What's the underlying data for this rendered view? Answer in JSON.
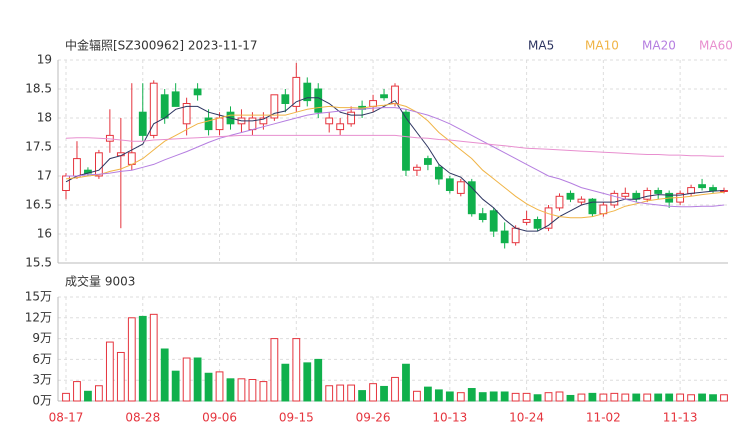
{
  "chart_data": [
    {
      "type": "candlestick",
      "title": "中金辐照[SZ300962] 2023-11-17",
      "categories": [
        "08-17",
        null,
        null,
        null,
        null,
        null,
        null,
        "08-28",
        null,
        null,
        null,
        null,
        null,
        null,
        "09-06",
        null,
        null,
        null,
        null,
        null,
        null,
        "09-15",
        null,
        null,
        null,
        null,
        null,
        null,
        "09-26",
        null,
        null,
        null,
        null,
        null,
        null,
        "10-13",
        null,
        null,
        null,
        null,
        null,
        null,
        "10-24",
        null,
        null,
        null,
        null,
        null,
        null,
        "11-02",
        null,
        null,
        null,
        null,
        null,
        null,
        "11-13",
        null,
        null,
        null,
        null
      ],
      "ohlc": [
        [
          16.75,
          17.05,
          16.6,
          17.0
        ],
        [
          17.0,
          17.6,
          16.95,
          17.3
        ],
        [
          17.1,
          17.15,
          17.0,
          17.05
        ],
        [
          17.0,
          17.45,
          16.95,
          17.4
        ],
        [
          17.6,
          18.15,
          17.4,
          17.7
        ],
        [
          17.35,
          18.0,
          16.1,
          17.4
        ],
        [
          17.2,
          18.6,
          17.1,
          17.4
        ],
        [
          18.1,
          18.6,
          17.6,
          17.7
        ],
        [
          17.7,
          18.65,
          17.65,
          18.6
        ],
        [
          18.4,
          18.5,
          17.9,
          18.0
        ],
        [
          18.45,
          18.6,
          18.2,
          18.2
        ],
        [
          17.9,
          18.35,
          17.7,
          18.25
        ],
        [
          18.5,
          18.6,
          18.3,
          18.4
        ],
        [
          18.0,
          18.15,
          17.7,
          17.8
        ],
        [
          17.8,
          18.1,
          17.7,
          18.0
        ],
        [
          18.1,
          18.2,
          17.8,
          17.9
        ],
        [
          17.9,
          18.15,
          17.75,
          18.0
        ],
        [
          17.8,
          18.1,
          17.7,
          18.0
        ],
        [
          17.9,
          18.1,
          17.8,
          18.0
        ],
        [
          18.0,
          18.4,
          17.95,
          18.4
        ],
        [
          18.4,
          18.5,
          18.1,
          18.25
        ],
        [
          18.2,
          18.95,
          18.1,
          18.7
        ],
        [
          18.6,
          18.7,
          18.2,
          18.3
        ],
        [
          18.5,
          18.6,
          18.0,
          18.1
        ],
        [
          17.9,
          18.1,
          17.75,
          18.0
        ],
        [
          17.8,
          18.0,
          17.7,
          17.9
        ],
        [
          17.9,
          18.2,
          17.85,
          18.1
        ],
        [
          18.2,
          18.3,
          18.0,
          18.15
        ],
        [
          18.2,
          18.4,
          18.1,
          18.3
        ],
        [
          18.4,
          18.5,
          18.3,
          18.35
        ],
        [
          18.25,
          18.6,
          18.2,
          18.55
        ],
        [
          18.1,
          18.15,
          17.0,
          17.1
        ],
        [
          17.1,
          17.2,
          17.0,
          17.15
        ],
        [
          17.3,
          17.35,
          17.1,
          17.2
        ],
        [
          17.15,
          17.2,
          16.85,
          16.95
        ],
        [
          16.95,
          17.0,
          16.7,
          16.75
        ],
        [
          16.7,
          16.95,
          16.65,
          16.9
        ],
        [
          16.9,
          16.95,
          16.3,
          16.35
        ],
        [
          16.35,
          16.45,
          16.2,
          16.25
        ],
        [
          16.4,
          16.45,
          15.95,
          16.05
        ],
        [
          16.05,
          16.2,
          15.75,
          15.85
        ],
        [
          15.85,
          16.15,
          15.8,
          16.1
        ],
        [
          16.2,
          16.4,
          16.15,
          16.25
        ],
        [
          16.25,
          16.3,
          16.05,
          16.1
        ],
        [
          16.1,
          16.5,
          16.05,
          16.45
        ],
        [
          16.45,
          16.7,
          16.4,
          16.65
        ],
        [
          16.7,
          16.75,
          16.55,
          16.6
        ],
        [
          16.55,
          16.65,
          16.5,
          16.6
        ],
        [
          16.6,
          16.62,
          16.3,
          16.35
        ],
        [
          16.35,
          16.55,
          16.3,
          16.5
        ],
        [
          16.5,
          16.75,
          16.45,
          16.7
        ],
        [
          16.65,
          16.8,
          16.6,
          16.7
        ],
        [
          16.7,
          16.75,
          16.55,
          16.6
        ],
        [
          16.6,
          16.8,
          16.55,
          16.75
        ],
        [
          16.75,
          16.8,
          16.6,
          16.7
        ],
        [
          16.7,
          16.75,
          16.45,
          16.55
        ],
        [
          16.55,
          16.75,
          16.5,
          16.7
        ],
        [
          16.7,
          16.85,
          16.65,
          16.8
        ],
        [
          16.85,
          16.95,
          16.75,
          16.8
        ],
        [
          16.8,
          16.85,
          16.7,
          16.75
        ],
        [
          16.75,
          16.8,
          16.7,
          16.75
        ]
      ],
      "up_color": "#e5343d",
      "down_color": "#10b04c",
      "ylim": [
        15.5,
        19
      ],
      "yticks": [
        15.5,
        16,
        16.5,
        17,
        17.5,
        18,
        18.5,
        19
      ],
      "grid": true,
      "series": [
        {
          "name": "MA5",
          "color": "#2d3561",
          "values": [
            16.9,
            17.0,
            17.05,
            17.1,
            17.3,
            17.35,
            17.45,
            17.55,
            17.9,
            18.0,
            18.15,
            18.2,
            18.2,
            18.1,
            18.05,
            18.0,
            17.95,
            17.95,
            17.98,
            18.08,
            18.12,
            18.28,
            18.35,
            18.35,
            18.25,
            18.1,
            18.05,
            18.05,
            18.1,
            18.2,
            18.3,
            18.0,
            17.75,
            17.5,
            17.2,
            17.05,
            16.98,
            16.8,
            16.6,
            16.45,
            16.25,
            16.1,
            16.05,
            16.05,
            16.15,
            16.3,
            16.4,
            16.5,
            16.55,
            16.55,
            16.55,
            16.6,
            16.6,
            16.65,
            16.68,
            16.67,
            16.67,
            16.7,
            16.72,
            16.74,
            16.75
          ]
        },
        {
          "name": "MA10",
          "color": "#f0b446",
          "values": [
            16.95,
            16.97,
            17.0,
            17.02,
            17.08,
            17.12,
            17.2,
            17.3,
            17.45,
            17.6,
            17.7,
            17.8,
            17.9,
            17.95,
            18.0,
            18.05,
            18.05,
            18.05,
            18.05,
            18.05,
            18.05,
            18.1,
            18.15,
            18.18,
            18.2,
            18.18,
            18.18,
            18.17,
            18.2,
            18.22,
            18.25,
            18.2,
            18.1,
            17.95,
            17.75,
            17.6,
            17.45,
            17.3,
            17.1,
            16.95,
            16.8,
            16.65,
            16.52,
            16.42,
            16.35,
            16.3,
            16.28,
            16.28,
            16.3,
            16.35,
            16.4,
            16.48,
            16.52,
            16.57,
            16.6,
            16.62,
            16.63,
            16.65,
            16.68,
            16.7,
            16.72
          ]
        },
        {
          "name": "MA20",
          "color": "#b57ee0",
          "values": [
            17.0,
            17.0,
            17.02,
            17.03,
            17.05,
            17.08,
            17.1,
            17.15,
            17.2,
            17.28,
            17.35,
            17.42,
            17.5,
            17.58,
            17.65,
            17.7,
            17.75,
            17.8,
            17.85,
            17.9,
            17.95,
            18.0,
            18.05,
            18.08,
            18.1,
            18.12,
            18.15,
            18.15,
            18.17,
            18.18,
            18.18,
            18.15,
            18.1,
            18.05,
            17.98,
            17.9,
            17.8,
            17.7,
            17.6,
            17.5,
            17.4,
            17.3,
            17.2,
            17.1,
            17.0,
            16.95,
            16.88,
            16.8,
            16.75,
            16.7,
            16.65,
            16.6,
            16.55,
            16.52,
            16.5,
            16.48,
            16.47,
            16.47,
            16.48,
            16.48,
            16.5
          ]
        },
        {
          "name": "MA60",
          "color": "#e88fcf",
          "values": [
            17.65,
            17.66,
            17.66,
            17.65,
            17.64,
            17.62,
            17.6,
            17.6,
            17.62,
            17.63,
            17.64,
            17.65,
            17.66,
            17.67,
            17.68,
            17.69,
            17.7,
            17.7,
            17.7,
            17.7,
            17.7,
            17.7,
            17.7,
            17.7,
            17.7,
            17.7,
            17.7,
            17.7,
            17.7,
            17.7,
            17.7,
            17.68,
            17.66,
            17.65,
            17.63,
            17.62,
            17.6,
            17.58,
            17.56,
            17.54,
            17.52,
            17.5,
            17.48,
            17.47,
            17.46,
            17.45,
            17.44,
            17.43,
            17.42,
            17.41,
            17.4,
            17.39,
            17.38,
            17.37,
            17.37,
            17.36,
            17.36,
            17.35,
            17.35,
            17.34,
            17.34
          ]
        }
      ]
    },
    {
      "type": "bar",
      "title": "成交量 9003",
      "values": [
        1.1,
        2.8,
        1.4,
        2.2,
        8.5,
        7.0,
        12.0,
        12.2,
        12.5,
        7.5,
        4.3,
        6.2,
        6.2,
        4.0,
        4.2,
        3.2,
        3.2,
        3.1,
        2.8,
        9.0,
        5.3,
        9.0,
        5.5,
        6.0,
        2.2,
        2.3,
        2.3,
        1.5,
        2.5,
        2.1,
        3.4,
        5.3,
        1.4,
        2.0,
        1.6,
        1.3,
        1.2,
        1.8,
        1.2,
        1.3,
        1.3,
        1.1,
        1.1,
        0.9,
        1.2,
        1.3,
        0.8,
        1.0,
        1.1,
        1.0,
        1.1,
        1.0,
        1.0,
        1.0,
        1.0,
        1.0,
        1.0,
        0.9,
        1.0,
        0.9,
        0.9003
      ],
      "ylim": [
        0,
        15
      ],
      "yticks": [
        {
          "value": 0,
          "label": "0万"
        },
        {
          "value": 3,
          "label": "3万"
        },
        {
          "value": 6,
          "label": "6万"
        },
        {
          "value": 9,
          "label": "9万"
        },
        {
          "value": 12,
          "label": "12万"
        },
        {
          "value": 15,
          "label": "15万"
        }
      ],
      "grid": true
    }
  ]
}
